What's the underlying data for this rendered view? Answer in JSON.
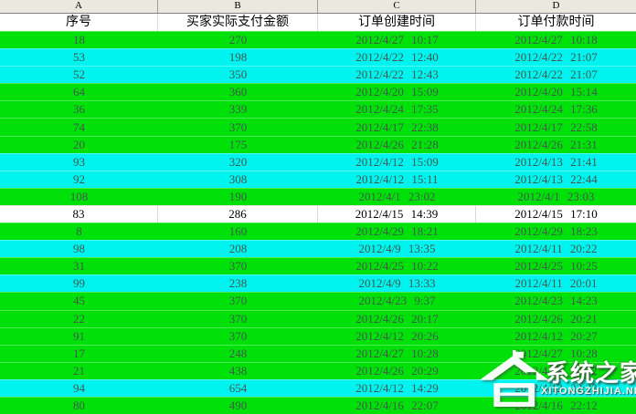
{
  "table": {
    "columns": [
      {
        "letter": "A",
        "header": "序号"
      },
      {
        "letter": "B",
        "header": "买家实际支付金额"
      },
      {
        "letter": "C",
        "header": "订单创建时间"
      },
      {
        "letter": "D",
        "header": "订单付款时间"
      }
    ],
    "rows": [
      {
        "a": "18",
        "b": "270",
        "c": "2012/4/27 10:17",
        "d": "2012/4/27 10:18",
        "bg": "green"
      },
      {
        "a": "53",
        "b": "198",
        "c": "2012/4/22 12:40",
        "d": "2012/4/22 21:07",
        "bg": "cyan"
      },
      {
        "a": "52",
        "b": "350",
        "c": "2012/4/22 12:43",
        "d": "2012/4/22 21:07",
        "bg": "cyan"
      },
      {
        "a": "64",
        "b": "360",
        "c": "2012/4/20 15:09",
        "d": "2012/4/20 15:14",
        "bg": "green"
      },
      {
        "a": "36",
        "b": "339",
        "c": "2012/4/24 17:35",
        "d": "2012/4/24 17:36",
        "bg": "green"
      },
      {
        "a": "74",
        "b": "370",
        "c": "2012/4/17 22:38",
        "d": "2012/4/17 22:58",
        "bg": "green"
      },
      {
        "a": "20",
        "b": "175",
        "c": "2012/4/26 21:28",
        "d": "2012/4/26 21:31",
        "bg": "green"
      },
      {
        "a": "93",
        "b": "320",
        "c": "2012/4/12 15:09",
        "d": "2012/4/13 21:41",
        "bg": "cyan"
      },
      {
        "a": "92",
        "b": "308",
        "c": "2012/4/12 15:11",
        "d": "2012/4/13 22:44",
        "bg": "cyan"
      },
      {
        "a": "108",
        "b": "190",
        "c": "2012/4/1 23:02",
        "d": "2012/4/1 23:03",
        "bg": "green"
      },
      {
        "a": "83",
        "b": "286",
        "c": "2012/4/15 14:39",
        "d": "2012/4/15 17:10",
        "bg": "white"
      },
      {
        "a": "8",
        "b": "160",
        "c": "2012/4/29 18:21",
        "d": "2012/4/29 18:23",
        "bg": "green"
      },
      {
        "a": "98",
        "b": "208",
        "c": "2012/4/9 13:35",
        "d": "2012/4/11 20:22",
        "bg": "cyan"
      },
      {
        "a": "31",
        "b": "370",
        "c": "2012/4/25 10:22",
        "d": "2012/4/25 10:25",
        "bg": "green"
      },
      {
        "a": "99",
        "b": "238",
        "c": "2012/4/9 13:33",
        "d": "2012/4/11 20:01",
        "bg": "cyan"
      },
      {
        "a": "45",
        "b": "370",
        "c": "2012/4/23 9:37",
        "d": "2012/4/23 14:23",
        "bg": "green"
      },
      {
        "a": "22",
        "b": "370",
        "c": "2012/4/26 20:17",
        "d": "2012/4/26 20:21",
        "bg": "green"
      },
      {
        "a": "91",
        "b": "370",
        "c": "2012/4/12 20:26",
        "d": "2012/4/12 20:27",
        "bg": "green"
      },
      {
        "a": "17",
        "b": "248",
        "c": "2012/4/27 10:28",
        "d": "2012/4/27 10:28",
        "bg": "green"
      },
      {
        "a": "21",
        "b": "438",
        "c": "2012/4/26 20:29",
        "d": "2012/4/26 20:32",
        "bg": "green"
      },
      {
        "a": "94",
        "b": "654",
        "c": "2012/4/12 14:29",
        "d": "2012/4/12 22:23",
        "bg": "cyan"
      },
      {
        "a": "80",
        "b": "490",
        "c": "2012/4/16 22:07",
        "d": "2012/4/16 22:12",
        "bg": "green"
      }
    ],
    "colors": {
      "row_green": "#00e109",
      "row_cyan": "#00f4ef",
      "row_white": "#ffffff",
      "letter_strip": "#ebe8e0"
    }
  },
  "watermark": {
    "title": "系统之家",
    "url": "XITONGZHIJIA.NET"
  }
}
